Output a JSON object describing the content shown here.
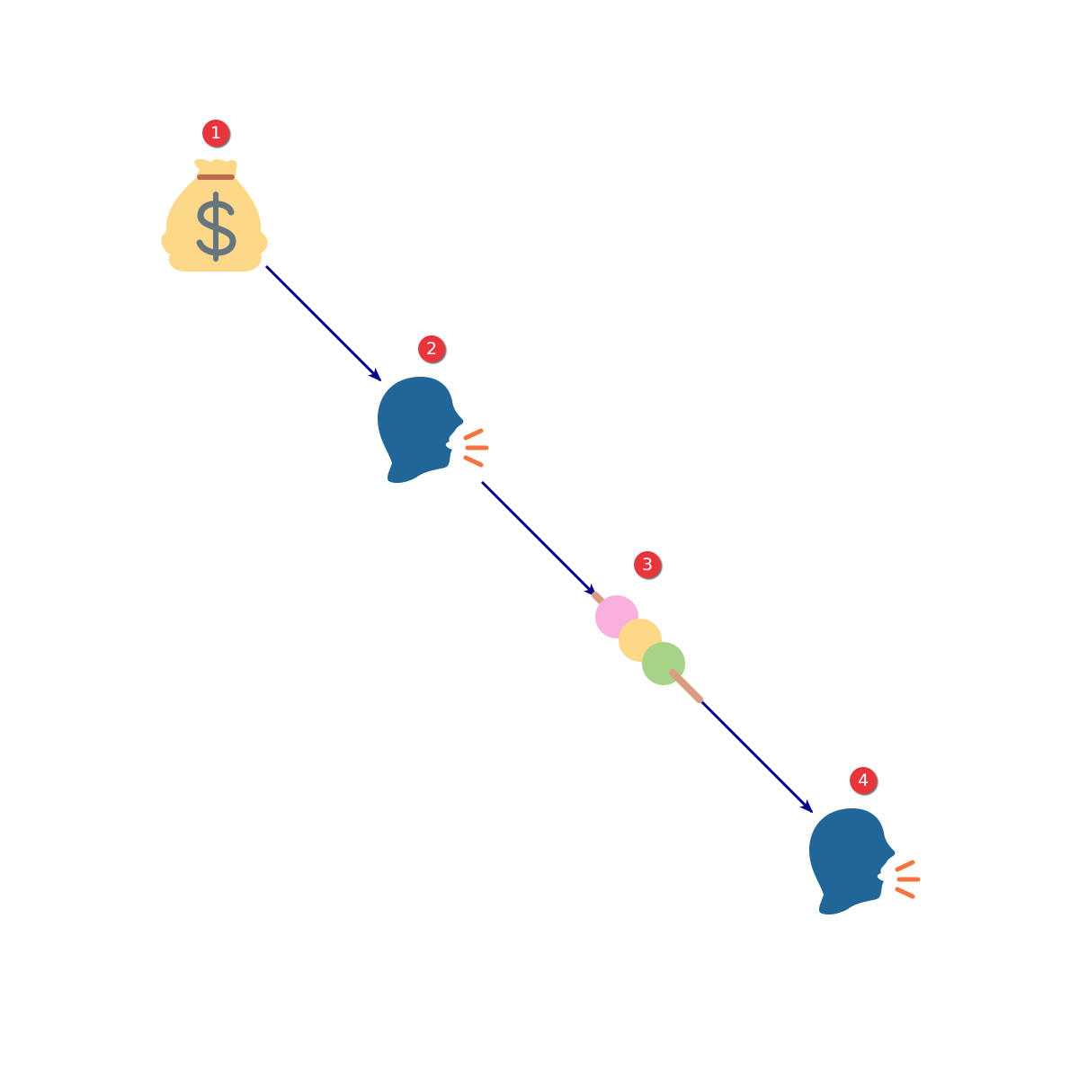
{
  "diagram": {
    "type": "emoji-flow",
    "nodes": [
      {
        "badge": "1",
        "icon": "money-bag-icon"
      },
      {
        "badge": "2",
        "icon": "speaking-head-icon"
      },
      {
        "badge": "3",
        "icon": "dango-icon"
      },
      {
        "badge": "4",
        "icon": "speaking-head-icon"
      }
    ],
    "edges": [
      {
        "from": "1",
        "to": "2"
      },
      {
        "from": "2",
        "to": "3"
      },
      {
        "from": "3",
        "to": "4"
      }
    ],
    "colors": {
      "arrow": "#00008b",
      "badge_fill": "#e8343b",
      "badge_text": "#ffffff",
      "money_bag": "#fdd888",
      "money_bag_tie": "#bf6952",
      "dollar_sign": "#67757f",
      "head": "#226699",
      "sound_waves": "#f4743b",
      "dango_pink": "#f9b0dc",
      "dango_yellow": "#fdd888",
      "dango_green": "#a6d388",
      "dango_stick": "#d99e82"
    }
  }
}
